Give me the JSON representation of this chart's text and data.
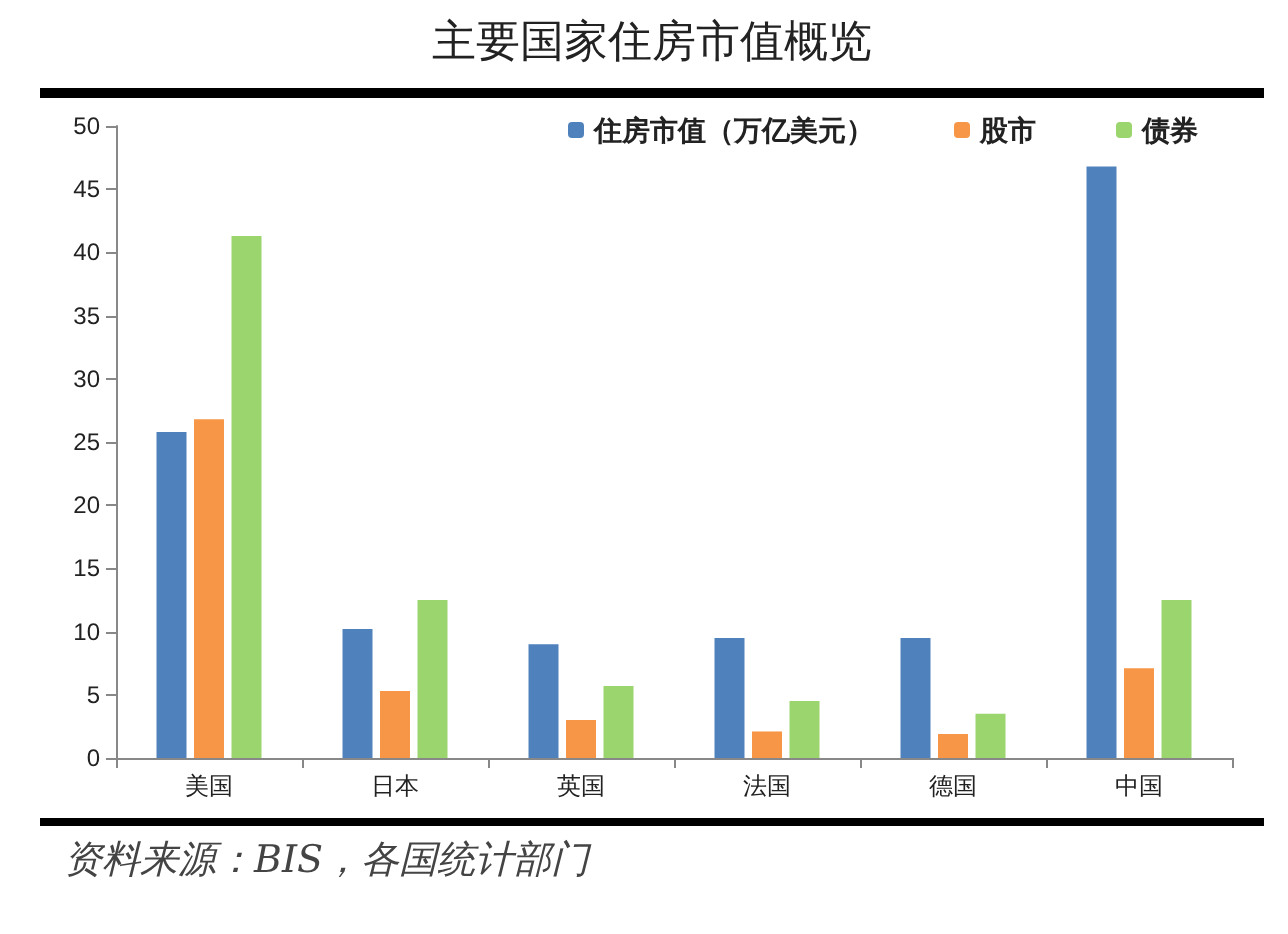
{
  "chart_data": {
    "type": "bar",
    "title": "主要国家住房市值概览",
    "categories": [
      "美国",
      "日本",
      "英国",
      "法国",
      "德国",
      "中国"
    ],
    "series": [
      {
        "name": "住房市值（万亿美元）",
        "color": "#4f81bd",
        "values": [
          25.8,
          10.2,
          9.0,
          9.5,
          9.5,
          46.8
        ]
      },
      {
        "name": "股市",
        "color": "#f79646",
        "values": [
          26.8,
          5.3,
          3.0,
          2.1,
          1.9,
          7.1
        ]
      },
      {
        "name": "债券",
        "color": "#9bd56e",
        "values": [
          41.3,
          12.5,
          5.7,
          4.5,
          3.5,
          12.5
        ]
      }
    ],
    "ylim": [
      0,
      50
    ],
    "yticks": [
      0,
      5,
      10,
      15,
      20,
      25,
      30,
      35,
      40,
      45,
      50
    ],
    "grid": false,
    "legend": "top right",
    "annotations": [
      "资料来源：BIS，各国统计部门"
    ]
  }
}
